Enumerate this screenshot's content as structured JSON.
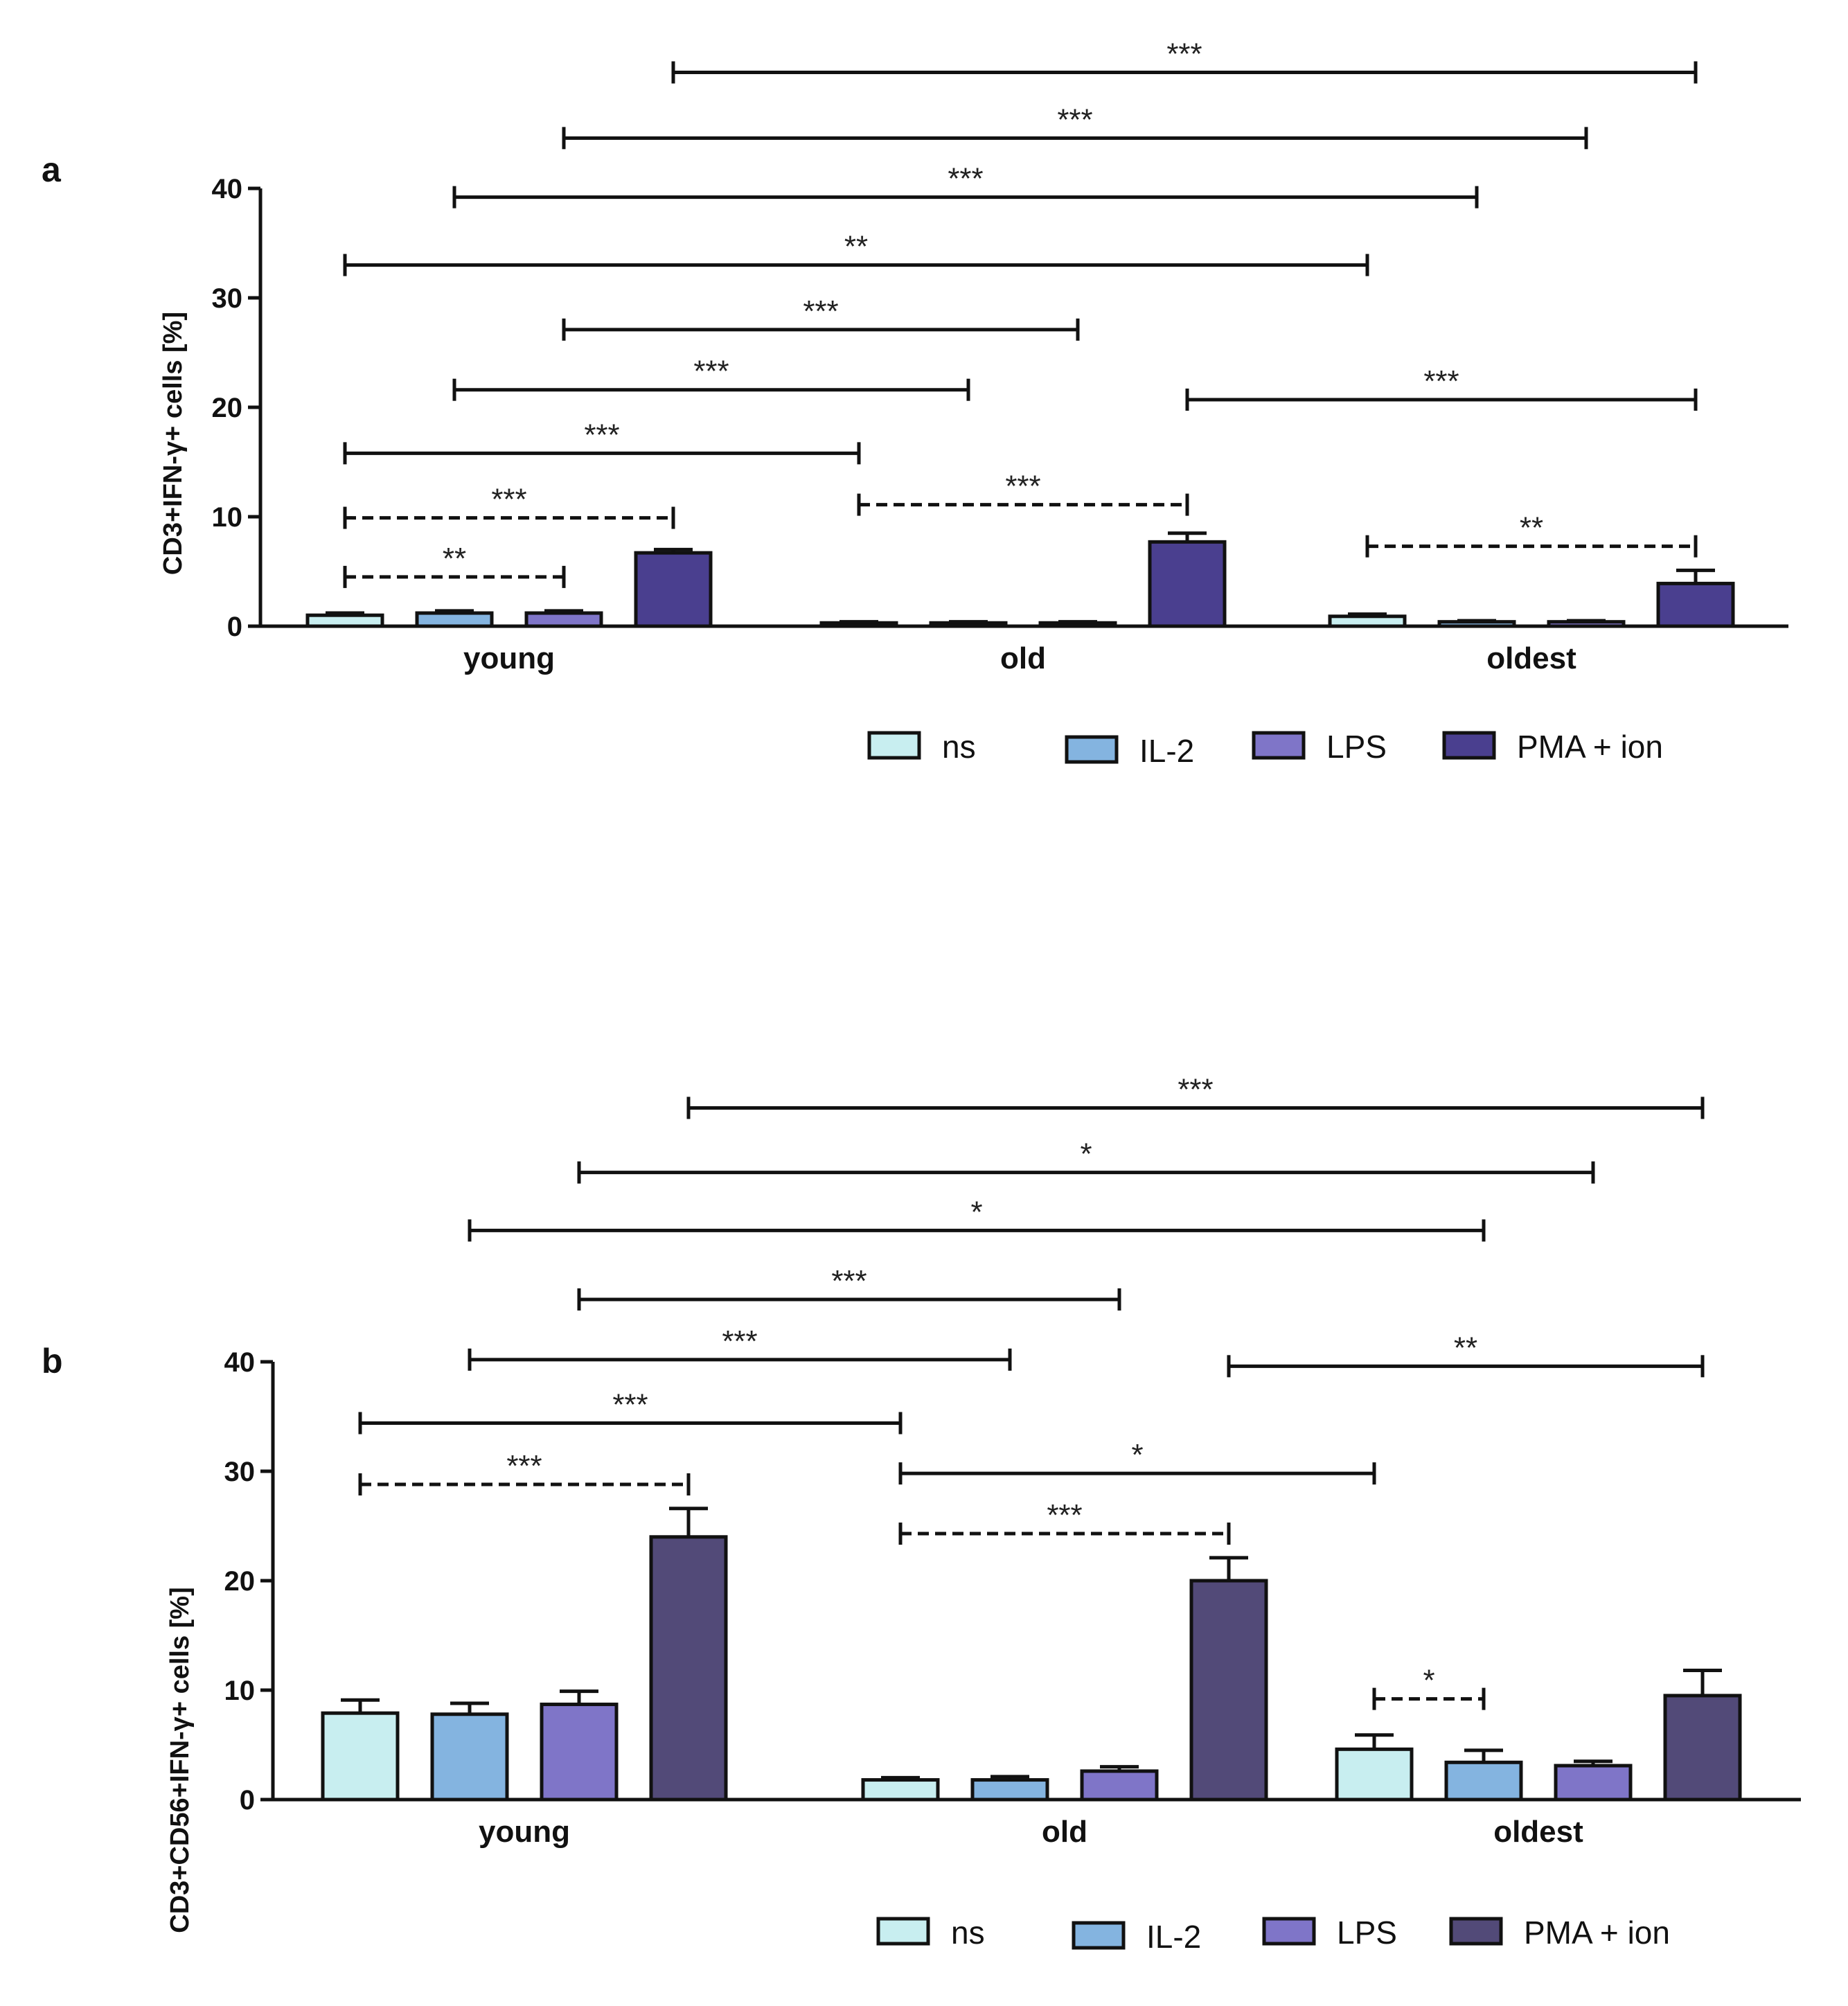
{
  "chart_data": [
    {
      "panel_label": "a",
      "type": "bar",
      "ylabel": "CD3+IFN-γ+ cells [%]",
      "ylim": [
        0,
        40
      ],
      "yticks": [
        "0",
        "10",
        "20",
        "30",
        "40"
      ],
      "categories": [
        "young",
        "old",
        "oldest"
      ],
      "series": [
        {
          "name": "ns",
          "color": "#c8eef0",
          "values": [
            1.0,
            0.3,
            0.9
          ],
          "errors": [
            0.2,
            0.1,
            0.2
          ]
        },
        {
          "name": "IL-2",
          "color": "#84b4e0",
          "values": [
            1.2,
            0.3,
            0.4
          ],
          "errors": [
            0.2,
            0.1,
            0.1
          ]
        },
        {
          "name": "LPS",
          "color": "#7f75c8",
          "values": [
            1.2,
            0.3,
            0.4
          ],
          "errors": [
            0.2,
            0.1,
            0.1
          ]
        },
        {
          "name": "PMA + ion",
          "color": "#4a3f8f",
          "values": [
            6.7,
            7.7,
            3.9
          ],
          "errors": [
            0.3,
            0.8,
            1.2
          ]
        }
      ],
      "legend": [
        "ns",
        "IL-2",
        "LPS",
        "PMA + ion"
      ],
      "annotations": [
        {
          "label": "***",
          "from": [
            0,
            3
          ],
          "to": [
            2,
            3
          ],
          "y": 50.6,
          "dashed": false
        },
        {
          "label": "***",
          "from": [
            0,
            2
          ],
          "to": [
            2,
            2
          ],
          "y": 44.6,
          "dashed": false
        },
        {
          "label": "***",
          "from": [
            0,
            1
          ],
          "to": [
            2,
            1
          ],
          "y": 39.2,
          "dashed": false
        },
        {
          "label": "**",
          "from": [
            0,
            0
          ],
          "to": [
            2,
            0
          ],
          "y": 33.0,
          "dashed": false
        },
        {
          "label": "***",
          "from": [
            0,
            2
          ],
          "to": [
            1,
            2
          ],
          "y": 27.1,
          "dashed": false
        },
        {
          "label": "***",
          "from": [
            0,
            1
          ],
          "to": [
            1,
            1
          ],
          "y": 21.6,
          "dashed": false
        },
        {
          "label": "***",
          "from": [
            1,
            3
          ],
          "to": [
            2,
            3
          ],
          "y": 20.7,
          "dashed": false
        },
        {
          "label": "***",
          "from": [
            0,
            0
          ],
          "to": [
            1,
            0
          ],
          "y": 15.8,
          "dashed": false
        },
        {
          "label": "***",
          "from": [
            0,
            0
          ],
          "to": [
            0,
            3
          ],
          "y": 9.9,
          "dashed": true
        },
        {
          "label": "***",
          "from": [
            1,
            0
          ],
          "to": [
            1,
            3
          ],
          "y": 11.1,
          "dashed": true
        },
        {
          "label": "**",
          "from": [
            0,
            0
          ],
          "to": [
            0,
            2
          ],
          "y": 4.5,
          "dashed": true
        },
        {
          "label": "**",
          "from": [
            2,
            0
          ],
          "to": [
            2,
            3
          ],
          "y": 7.3,
          "dashed": true
        }
      ]
    },
    {
      "panel_label": "b",
      "type": "bar",
      "ylabel": "CD3+CD56+IFN-γ+ cells [%]",
      "ylim": [
        0,
        40
      ],
      "yticks": [
        "0",
        "10",
        "20",
        "30",
        "40"
      ],
      "categories": [
        "young",
        "old",
        "oldest"
      ],
      "series": [
        {
          "name": "ns",
          "color": "#c8eef0",
          "values": [
            7.9,
            1.8,
            4.6
          ],
          "errors": [
            1.2,
            0.2,
            1.3
          ]
        },
        {
          "name": "IL-2",
          "color": "#84b4e0",
          "values": [
            7.8,
            1.8,
            3.4
          ],
          "errors": [
            1.0,
            0.3,
            1.1
          ]
        },
        {
          "name": "LPS",
          "color": "#7f75c8",
          "values": [
            8.7,
            2.6,
            3.1
          ],
          "errors": [
            1.2,
            0.4,
            0.4
          ]
        },
        {
          "name": "PMA + ion",
          "color": "#524a78",
          "values": [
            24.0,
            20.0,
            9.5
          ],
          "errors": [
            2.6,
            2.1,
            2.3
          ]
        }
      ],
      "legend": [
        "ns",
        "IL-2",
        "LPS",
        "PMA + ion"
      ],
      "annotations": [
        {
          "label": "***",
          "from": [
            0,
            3
          ],
          "to": [
            2,
            3
          ],
          "y": 63.2,
          "dashed": false
        },
        {
          "label": "*",
          "from": [
            0,
            2
          ],
          "to": [
            2,
            2
          ],
          "y": 57.3,
          "dashed": false
        },
        {
          "label": "*",
          "from": [
            0,
            1
          ],
          "to": [
            2,
            1
          ],
          "y": 52.0,
          "dashed": false
        },
        {
          "label": "***",
          "from": [
            0,
            2
          ],
          "to": [
            1,
            2
          ],
          "y": 45.7,
          "dashed": false
        },
        {
          "label": "***",
          "from": [
            0,
            1
          ],
          "to": [
            1,
            1
          ],
          "y": 40.2,
          "dashed": false
        },
        {
          "label": "**",
          "from": [
            1,
            3
          ],
          "to": [
            2,
            3
          ],
          "y": 39.6,
          "dashed": false
        },
        {
          "label": "***",
          "from": [
            0,
            0
          ],
          "to": [
            1,
            0
          ],
          "y": 34.4,
          "dashed": false
        },
        {
          "label": "***",
          "from": [
            0,
            0
          ],
          "to": [
            0,
            3
          ],
          "y": 28.8,
          "dashed": true
        },
        {
          "label": "*",
          "from": [
            1,
            0
          ],
          "to": [
            2,
            0
          ],
          "y": 29.8,
          "dashed": false
        },
        {
          "label": "***",
          "from": [
            1,
            0
          ],
          "to": [
            1,
            3
          ],
          "y": 24.3,
          "dashed": true
        },
        {
          "label": "*",
          "from": [
            2,
            0
          ],
          "to": [
            2,
            1
          ],
          "y": 9.2,
          "dashed": true
        }
      ]
    }
  ]
}
